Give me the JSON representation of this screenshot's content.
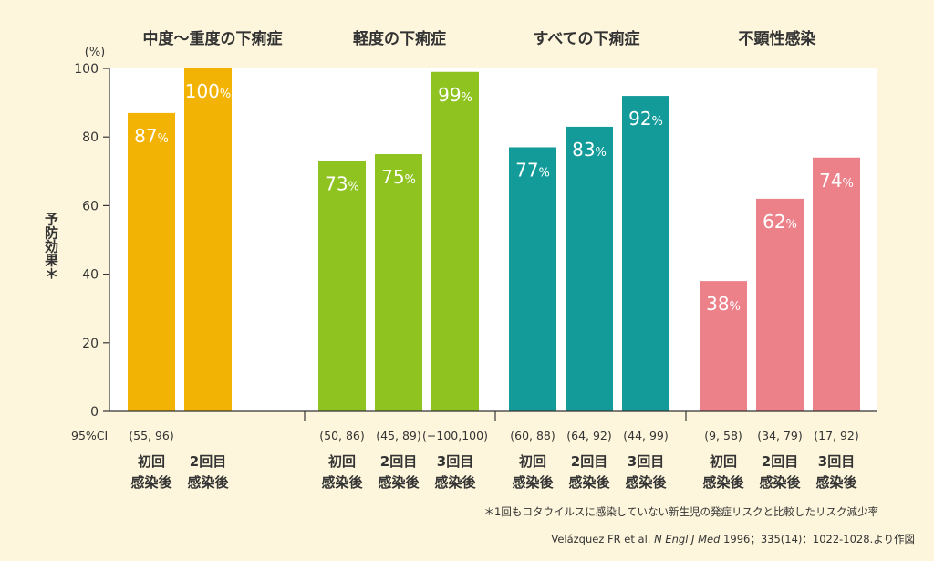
{
  "chart_data": {
    "type": "bar",
    "y_unit": "(%)",
    "ylabel": "予防効果＊",
    "ylim": [
      0,
      100
    ],
    "yticks": [
      0,
      20,
      40,
      60,
      80,
      100
    ],
    "ci_label": "95%CI",
    "value_suffix": "%",
    "groups": [
      {
        "title": "中度〜重度の下痢症",
        "color": "#f2b305",
        "bars": [
          {
            "line1": "初回",
            "line2": "感染後",
            "value": 87,
            "ci": "(55, 96)"
          },
          {
            "line1": "2回目",
            "line2": "感染後",
            "value": 100,
            "ci": ""
          }
        ]
      },
      {
        "title": "軽度の下痢症",
        "color": "#8fc320",
        "bars": [
          {
            "line1": "初回",
            "line2": "感染後",
            "value": 73,
            "ci": "(50, 86)"
          },
          {
            "line1": "2回目",
            "line2": "感染後",
            "value": 75,
            "ci": "(45, 89)"
          },
          {
            "line1": "3回目",
            "line2": "感染後",
            "value": 99,
            "ci": "(−100,100)"
          }
        ]
      },
      {
        "title": "すべての下痢症",
        "color": "#129b99",
        "bars": [
          {
            "line1": "初回",
            "line2": "感染後",
            "value": 77,
            "ci": "(60, 88)"
          },
          {
            "line1": "2回目",
            "line2": "感染後",
            "value": 83,
            "ci": "(64, 92)"
          },
          {
            "line1": "3回目",
            "line2": "感染後",
            "value": 92,
            "ci": "(44, 99)"
          }
        ]
      },
      {
        "title": "不顕性感染",
        "color": "#ec8189",
        "bars": [
          {
            "line1": "初回",
            "line2": "感染後",
            "value": 38,
            "ci": "(9, 58)"
          },
          {
            "line1": "2回目",
            "line2": "感染後",
            "value": 62,
            "ci": "(34, 79)"
          },
          {
            "line1": "3回目",
            "line2": "感染後",
            "value": 74,
            "ci": "(17, 92)"
          }
        ]
      }
    ],
    "footnote": "＊1回もロタウイルスに感染していない新生児の発症リスクと比較したリスク減少率",
    "source": {
      "prefix": "Velázquez FR et al. ",
      "journal": "N Engl J Med",
      "suffix": " 1996；335(14)：1022-1028.より作図"
    }
  }
}
